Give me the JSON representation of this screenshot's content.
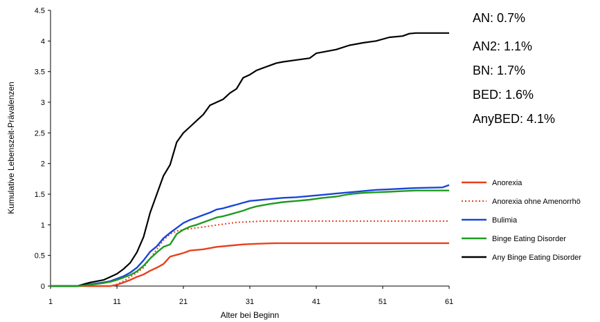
{
  "chart_data": {
    "type": "line",
    "xlabel": "Alter bei Beginn",
    "ylabel": "Kumulative Lebenszeit-Prävalenzen",
    "xlim": [
      1,
      61
    ],
    "ylim": [
      0,
      4.5
    ],
    "x_ticks": [
      "1",
      "11",
      "21",
      "31",
      "41",
      "51",
      "61"
    ],
    "y_ticks": [
      "0",
      "0.5",
      "1",
      "1.5",
      "2",
      "2.5",
      "3",
      "3.5",
      "4",
      "4.5"
    ],
    "legend_position": "right",
    "grid": false,
    "series": [
      {
        "name": "Anorexia",
        "color": "#e8401c",
        "style": "solid",
        "points": [
          [
            1,
            0
          ],
          [
            10,
            0
          ],
          [
            11,
            0.02
          ],
          [
            12,
            0.06
          ],
          [
            13,
            0.1
          ],
          [
            14,
            0.15
          ],
          [
            15,
            0.19
          ],
          [
            16,
            0.25
          ],
          [
            17,
            0.3
          ],
          [
            18,
            0.36
          ],
          [
            19,
            0.48
          ],
          [
            20,
            0.51
          ],
          [
            21,
            0.54
          ],
          [
            22,
            0.58
          ],
          [
            24,
            0.6
          ],
          [
            26,
            0.64
          ],
          [
            28,
            0.66
          ],
          [
            30,
            0.68
          ],
          [
            32,
            0.69
          ],
          [
            35,
            0.7
          ],
          [
            61,
            0.7
          ]
        ]
      },
      {
        "name": "Anorexia ohne Amenorrhö",
        "color": "#e8401c",
        "style": "dotted",
        "points": [
          [
            1,
            0
          ],
          [
            10,
            0
          ],
          [
            11,
            0.03
          ],
          [
            12,
            0.08
          ],
          [
            13,
            0.15
          ],
          [
            14,
            0.22
          ],
          [
            15,
            0.3
          ],
          [
            16,
            0.45
          ],
          [
            17,
            0.6
          ],
          [
            18,
            0.75
          ],
          [
            19,
            0.85
          ],
          [
            20,
            0.9
          ],
          [
            21,
            0.92
          ],
          [
            23,
            0.95
          ],
          [
            25,
            0.98
          ],
          [
            27,
            1.01
          ],
          [
            29,
            1.04
          ],
          [
            31,
            1.05
          ],
          [
            33,
            1.06
          ],
          [
            61,
            1.06
          ]
        ]
      },
      {
        "name": "Bulimia",
        "color": "#1a45d6",
        "style": "solid",
        "points": [
          [
            1,
            0
          ],
          [
            5,
            0
          ],
          [
            7,
            0.03
          ],
          [
            9,
            0.06
          ],
          [
            10,
            0.08
          ],
          [
            11,
            0.12
          ],
          [
            12,
            0.16
          ],
          [
            13,
            0.22
          ],
          [
            14,
            0.3
          ],
          [
            15,
            0.42
          ],
          [
            16,
            0.56
          ],
          [
            17,
            0.65
          ],
          [
            18,
            0.78
          ],
          [
            19,
            0.87
          ],
          [
            20,
            0.95
          ],
          [
            21,
            1.03
          ],
          [
            22,
            1.08
          ],
          [
            23,
            1.12
          ],
          [
            24,
            1.16
          ],
          [
            25,
            1.2
          ],
          [
            26,
            1.25
          ],
          [
            27,
            1.27
          ],
          [
            28,
            1.3
          ],
          [
            29,
            1.33
          ],
          [
            30,
            1.36
          ],
          [
            31,
            1.39
          ],
          [
            32,
            1.4
          ],
          [
            34,
            1.42
          ],
          [
            36,
            1.44
          ],
          [
            38,
            1.45
          ],
          [
            40,
            1.47
          ],
          [
            42,
            1.49
          ],
          [
            44,
            1.51
          ],
          [
            46,
            1.53
          ],
          [
            48,
            1.55
          ],
          [
            50,
            1.57
          ],
          [
            52,
            1.58
          ],
          [
            54,
            1.59
          ],
          [
            56,
            1.6
          ],
          [
            60,
            1.61
          ],
          [
            61,
            1.65
          ]
        ]
      },
      {
        "name": "Binge Eating Disorder",
        "color": "#1f9a1f",
        "style": "solid",
        "points": [
          [
            1,
            0
          ],
          [
            5,
            0
          ],
          [
            7,
            0.02
          ],
          [
            9,
            0.05
          ],
          [
            10,
            0.07
          ],
          [
            11,
            0.1
          ],
          [
            12,
            0.14
          ],
          [
            13,
            0.18
          ],
          [
            14,
            0.24
          ],
          [
            15,
            0.33
          ],
          [
            16,
            0.45
          ],
          [
            17,
            0.55
          ],
          [
            18,
            0.64
          ],
          [
            19,
            0.68
          ],
          [
            20,
            0.85
          ],
          [
            21,
            0.92
          ],
          [
            22,
            0.97
          ],
          [
            23,
            1.0
          ],
          [
            24,
            1.04
          ],
          [
            25,
            1.08
          ],
          [
            26,
            1.12
          ],
          [
            27,
            1.14
          ],
          [
            28,
            1.17
          ],
          [
            29,
            1.2
          ],
          [
            30,
            1.23
          ],
          [
            31,
            1.27
          ],
          [
            32,
            1.3
          ],
          [
            34,
            1.34
          ],
          [
            36,
            1.37
          ],
          [
            38,
            1.39
          ],
          [
            40,
            1.41
          ],
          [
            42,
            1.44
          ],
          [
            44,
            1.46
          ],
          [
            46,
            1.5
          ],
          [
            48,
            1.52
          ],
          [
            50,
            1.53
          ],
          [
            52,
            1.54
          ],
          [
            54,
            1.55
          ],
          [
            56,
            1.56
          ],
          [
            61,
            1.56
          ]
        ]
      },
      {
        "name": "Any Binge Eating Disorder",
        "color": "#000000",
        "style": "solid",
        "points": [
          [
            1,
            0
          ],
          [
            5,
            0
          ],
          [
            6,
            0.03
          ],
          [
            7,
            0.06
          ],
          [
            8,
            0.08
          ],
          [
            9,
            0.1
          ],
          [
            10,
            0.15
          ],
          [
            11,
            0.2
          ],
          [
            12,
            0.28
          ],
          [
            13,
            0.38
          ],
          [
            14,
            0.55
          ],
          [
            15,
            0.8
          ],
          [
            16,
            1.2
          ],
          [
            17,
            1.5
          ],
          [
            18,
            1.8
          ],
          [
            19,
            1.98
          ],
          [
            20,
            2.35
          ],
          [
            21,
            2.5
          ],
          [
            22,
            2.6
          ],
          [
            23,
            2.7
          ],
          [
            24,
            2.8
          ],
          [
            25,
            2.95
          ],
          [
            26,
            3.0
          ],
          [
            27,
            3.05
          ],
          [
            28,
            3.15
          ],
          [
            29,
            3.22
          ],
          [
            30,
            3.4
          ],
          [
            31,
            3.45
          ],
          [
            32,
            3.52
          ],
          [
            33,
            3.56
          ],
          [
            34,
            3.6
          ],
          [
            35,
            3.64
          ],
          [
            36,
            3.66
          ],
          [
            38,
            3.69
          ],
          [
            40,
            3.72
          ],
          [
            41,
            3.8
          ],
          [
            42,
            3.82
          ],
          [
            44,
            3.86
          ],
          [
            46,
            3.93
          ],
          [
            48,
            3.97
          ],
          [
            50,
            4.0
          ],
          [
            52,
            4.06
          ],
          [
            54,
            4.08
          ],
          [
            55,
            4.12
          ],
          [
            56,
            4.13
          ],
          [
            61,
            4.13
          ]
        ]
      }
    ]
  },
  "stats": [
    {
      "label": "AN: 0.7%"
    },
    {
      "label": "AN2: 1.1%"
    },
    {
      "label": "BN: 1.7%"
    },
    {
      "label": "BED: 1.6%"
    },
    {
      "label": "AnyBED: 4.1%"
    }
  ]
}
